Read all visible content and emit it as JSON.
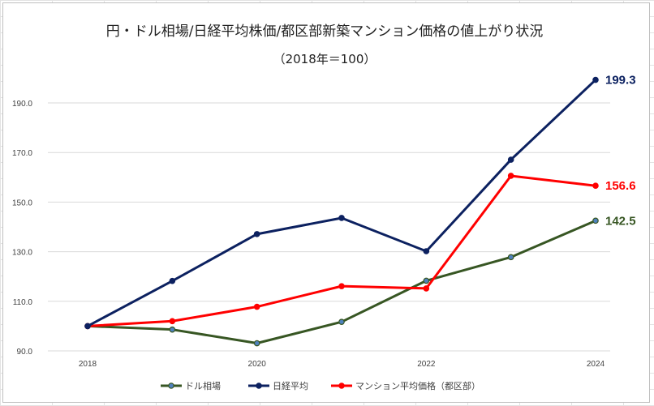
{
  "chart_data": {
    "type": "line",
    "title": "円・ドル相場/日経平均株価/都区部新築マンション価格の値上がり状況",
    "subtitle": "（2018年＝100）",
    "x": [
      2018,
      2019,
      2020,
      2021,
      2022,
      2023,
      2024
    ],
    "x_tick_labels": [
      "2018",
      "2020",
      "2022",
      "2024"
    ],
    "x_tick_values": [
      2018,
      2020,
      2022,
      2024
    ],
    "ylim": [
      90,
      200
    ],
    "y_ticks": [
      90,
      110,
      130,
      150,
      170,
      190
    ],
    "y_tick_labels": [
      "90.0",
      "110.0",
      "130.0",
      "150.0",
      "170.0",
      "190.0"
    ],
    "grid": "horizontal",
    "legend": "bottom",
    "series": [
      {
        "name": "ドル相場",
        "color": "#375623",
        "values": [
          100,
          98.6,
          93.1,
          101.7,
          118.3,
          127.8,
          142.5
        ],
        "end_label": "142.5"
      },
      {
        "name": "日経平均",
        "color": "#0c2160",
        "values": [
          100,
          118.2,
          137.1,
          143.6,
          130.2,
          167.1,
          199.3
        ],
        "end_label": "199.3"
      },
      {
        "name": "マンション平均価格（都区部）",
        "color": "#ff0000",
        "values": [
          100,
          102.0,
          107.8,
          116.1,
          115.2,
          160.6,
          156.6
        ],
        "end_label": "156.6"
      }
    ]
  }
}
